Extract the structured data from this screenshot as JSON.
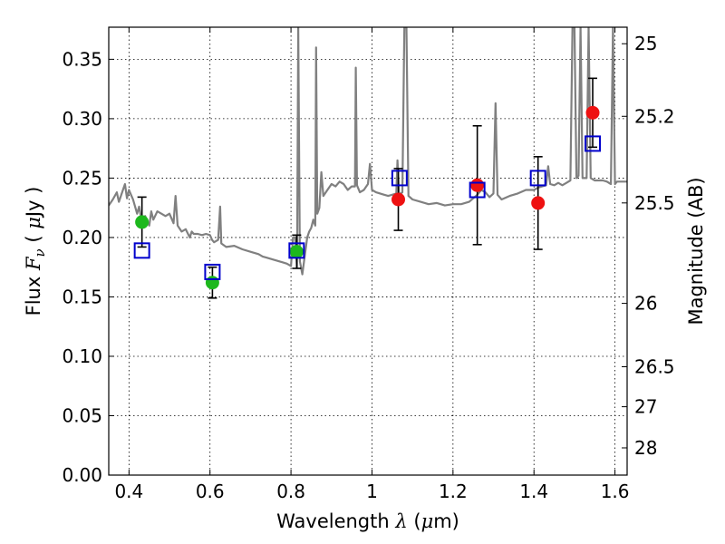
{
  "chart_data": {
    "type": "scatter",
    "xlabel_text": "Wavelength",
    "xlabel_symbol": "λ",
    "xlabel_unit_open": " (",
    "xlabel_unit_mu": "μ",
    "xlabel_unit_rest": "m)",
    "ylabel_text": "Flux",
    "ylabel_symbol": "F",
    "ylabel_sub": "ν",
    "ylabel_unit_open": " ( ",
    "ylabel_unit_mu": "μ",
    "ylabel_unit_rest": "Jy )",
    "y2label": "Magnitude (AB)",
    "xlim": [
      0.35,
      1.63
    ],
    "ylim": [
      0.0,
      0.377
    ],
    "grid": true,
    "x_ticks": [
      "0.4",
      "0.6",
      "0.8",
      "1",
      "1.2",
      "1.4",
      "1.6"
    ],
    "x_tick_values": [
      0.4,
      0.6,
      0.8,
      1.0,
      1.2,
      1.4,
      1.6
    ],
    "y_ticks": [
      "0.00",
      "0.05",
      "0.10",
      "0.15",
      "0.20",
      "0.25",
      "0.30",
      "0.35"
    ],
    "y_tick_values": [
      0.0,
      0.05,
      0.1,
      0.15,
      0.2,
      0.25,
      0.3,
      0.35
    ],
    "mag_ticks": [
      "25",
      "25.2",
      "25.5",
      "26",
      "26.5",
      "27",
      "28"
    ],
    "mag_tick_values": [
      25,
      25.2,
      25.5,
      26,
      26.5,
      27,
      28
    ],
    "series": [
      {
        "marker": "circle",
        "color": "#1db81d",
        "points": [
          {
            "x": 0.432,
            "y": 0.213,
            "err": 0.021
          },
          {
            "x": 0.606,
            "y": 0.162,
            "err": 0.013
          },
          {
            "x": 0.814,
            "y": 0.188,
            "err": 0.014
          }
        ]
      },
      {
        "marker": "circle",
        "color": "#ee1111",
        "points": [
          {
            "x": 1.065,
            "y": 0.232,
            "err": 0.026
          },
          {
            "x": 1.26,
            "y": 0.244,
            "err": 0.05
          },
          {
            "x": 1.41,
            "y": 0.229,
            "err": 0.039
          },
          {
            "x": 1.545,
            "y": 0.305,
            "err": 0.029
          }
        ]
      },
      {
        "marker": "open-square",
        "color": "#0000cc",
        "points": [
          {
            "x": 0.432,
            "y": 0.189
          },
          {
            "x": 0.606,
            "y": 0.171
          },
          {
            "x": 0.814,
            "y": 0.189
          },
          {
            "x": 1.068,
            "y": 0.25
          },
          {
            "x": 1.26,
            "y": 0.24
          },
          {
            "x": 1.41,
            "y": 0.25
          },
          {
            "x": 1.545,
            "y": 0.279
          }
        ]
      }
    ],
    "model_spectrum": {
      "color": "#808080",
      "points": [
        [
          0.35,
          0.227
        ],
        [
          0.36,
          0.232
        ],
        [
          0.37,
          0.238
        ],
        [
          0.375,
          0.23
        ],
        [
          0.38,
          0.235
        ],
        [
          0.39,
          0.245
        ],
        [
          0.395,
          0.233
        ],
        [
          0.4,
          0.24
        ],
        [
          0.41,
          0.232
        ],
        [
          0.42,
          0.22
        ],
        [
          0.425,
          0.226
        ],
        [
          0.43,
          0.216
        ],
        [
          0.44,
          0.218
        ],
        [
          0.45,
          0.21
        ],
        [
          0.455,
          0.222
        ],
        [
          0.46,
          0.215
        ],
        [
          0.47,
          0.222
        ],
        [
          0.48,
          0.22
        ],
        [
          0.49,
          0.218
        ],
        [
          0.5,
          0.22
        ],
        [
          0.51,
          0.212
        ],
        [
          0.515,
          0.235
        ],
        [
          0.52,
          0.21
        ],
        [
          0.53,
          0.205
        ],
        [
          0.54,
          0.207
        ],
        [
          0.55,
          0.2
        ],
        [
          0.555,
          0.205
        ],
        [
          0.56,
          0.203
        ],
        [
          0.57,
          0.203
        ],
        [
          0.58,
          0.202
        ],
        [
          0.59,
          0.203
        ],
        [
          0.6,
          0.202
        ],
        [
          0.605,
          0.198
        ],
        [
          0.61,
          0.196
        ],
        [
          0.62,
          0.198
        ],
        [
          0.625,
          0.226
        ],
        [
          0.628,
          0.195
        ],
        [
          0.64,
          0.192
        ],
        [
          0.66,
          0.193
        ],
        [
          0.68,
          0.19
        ],
        [
          0.7,
          0.188
        ],
        [
          0.72,
          0.186
        ],
        [
          0.73,
          0.184
        ],
        [
          0.74,
          0.183
        ],
        [
          0.76,
          0.181
        ],
        [
          0.78,
          0.179
        ],
        [
          0.79,
          0.178
        ],
        [
          0.8,
          0.176
        ],
        [
          0.805,
          0.2
        ],
        [
          0.81,
          0.2
        ],
        [
          0.815,
          0.175
        ],
        [
          0.818,
          0.377
        ],
        [
          0.822,
          0.18
        ],
        [
          0.828,
          0.169
        ],
        [
          0.835,
          0.187
        ],
        [
          0.84,
          0.2
        ],
        [
          0.845,
          0.205
        ],
        [
          0.85,
          0.208
        ],
        [
          0.855,
          0.215
        ],
        [
          0.86,
          0.21
        ],
        [
          0.862,
          0.36
        ],
        [
          0.865,
          0.22
        ],
        [
          0.87,
          0.225
        ],
        [
          0.875,
          0.255
        ],
        [
          0.88,
          0.235
        ],
        [
          0.89,
          0.24
        ],
        [
          0.9,
          0.245
        ],
        [
          0.91,
          0.243
        ],
        [
          0.92,
          0.247
        ],
        [
          0.93,
          0.245
        ],
        [
          0.94,
          0.24
        ],
        [
          0.95,
          0.243
        ],
        [
          0.958,
          0.243
        ],
        [
          0.96,
          0.343
        ],
        [
          0.963,
          0.244
        ],
        [
          0.97,
          0.238
        ],
        [
          0.98,
          0.24
        ],
        [
          0.99,
          0.245
        ],
        [
          0.995,
          0.262
        ],
        [
          1.0,
          0.24
        ],
        [
          1.01,
          0.238
        ],
        [
          1.02,
          0.237
        ],
        [
          1.03,
          0.236
        ],
        [
          1.04,
          0.235
        ],
        [
          1.05,
          0.236
        ],
        [
          1.06,
          0.237
        ],
        [
          1.063,
          0.265
        ],
        [
          1.067,
          0.236
        ],
        [
          1.075,
          0.238
        ],
        [
          1.08,
          0.377
        ],
        [
          1.085,
          0.377
        ],
        [
          1.09,
          0.235
        ],
        [
          1.1,
          0.232
        ],
        [
          1.12,
          0.23
        ],
        [
          1.14,
          0.228
        ],
        [
          1.16,
          0.229
        ],
        [
          1.18,
          0.227
        ],
        [
          1.2,
          0.228
        ],
        [
          1.22,
          0.228
        ],
        [
          1.24,
          0.23
        ],
        [
          1.26,
          0.236
        ],
        [
          1.27,
          0.24
        ],
        [
          1.28,
          0.238
        ],
        [
          1.29,
          0.234
        ],
        [
          1.3,
          0.237
        ],
        [
          1.305,
          0.313
        ],
        [
          1.31,
          0.236
        ],
        [
          1.32,
          0.232
        ],
        [
          1.34,
          0.235
        ],
        [
          1.36,
          0.237
        ],
        [
          1.38,
          0.24
        ],
        [
          1.4,
          0.24
        ],
        [
          1.41,
          0.242
        ],
        [
          1.42,
          0.243
        ],
        [
          1.43,
          0.244
        ],
        [
          1.435,
          0.26
        ],
        [
          1.44,
          0.245
        ],
        [
          1.45,
          0.244
        ],
        [
          1.46,
          0.246
        ],
        [
          1.47,
          0.244
        ],
        [
          1.48,
          0.246
        ],
        [
          1.49,
          0.248
        ],
        [
          1.495,
          0.377
        ],
        [
          1.5,
          0.377
        ],
        [
          1.505,
          0.25
        ],
        [
          1.51,
          0.252
        ],
        [
          1.515,
          0.377
        ],
        [
          1.52,
          0.25
        ],
        [
          1.53,
          0.25
        ],
        [
          1.535,
          0.377
        ],
        [
          1.54,
          0.25
        ],
        [
          1.55,
          0.248
        ],
        [
          1.56,
          0.248
        ],
        [
          1.57,
          0.248
        ],
        [
          1.58,
          0.247
        ],
        [
          1.59,
          0.245
        ],
        [
          1.595,
          0.377
        ],
        [
          1.6,
          0.245
        ],
        [
          1.605,
          0.247
        ],
        [
          1.61,
          0.247
        ],
        [
          1.62,
          0.247
        ],
        [
          1.63,
          0.247
        ]
      ]
    }
  }
}
